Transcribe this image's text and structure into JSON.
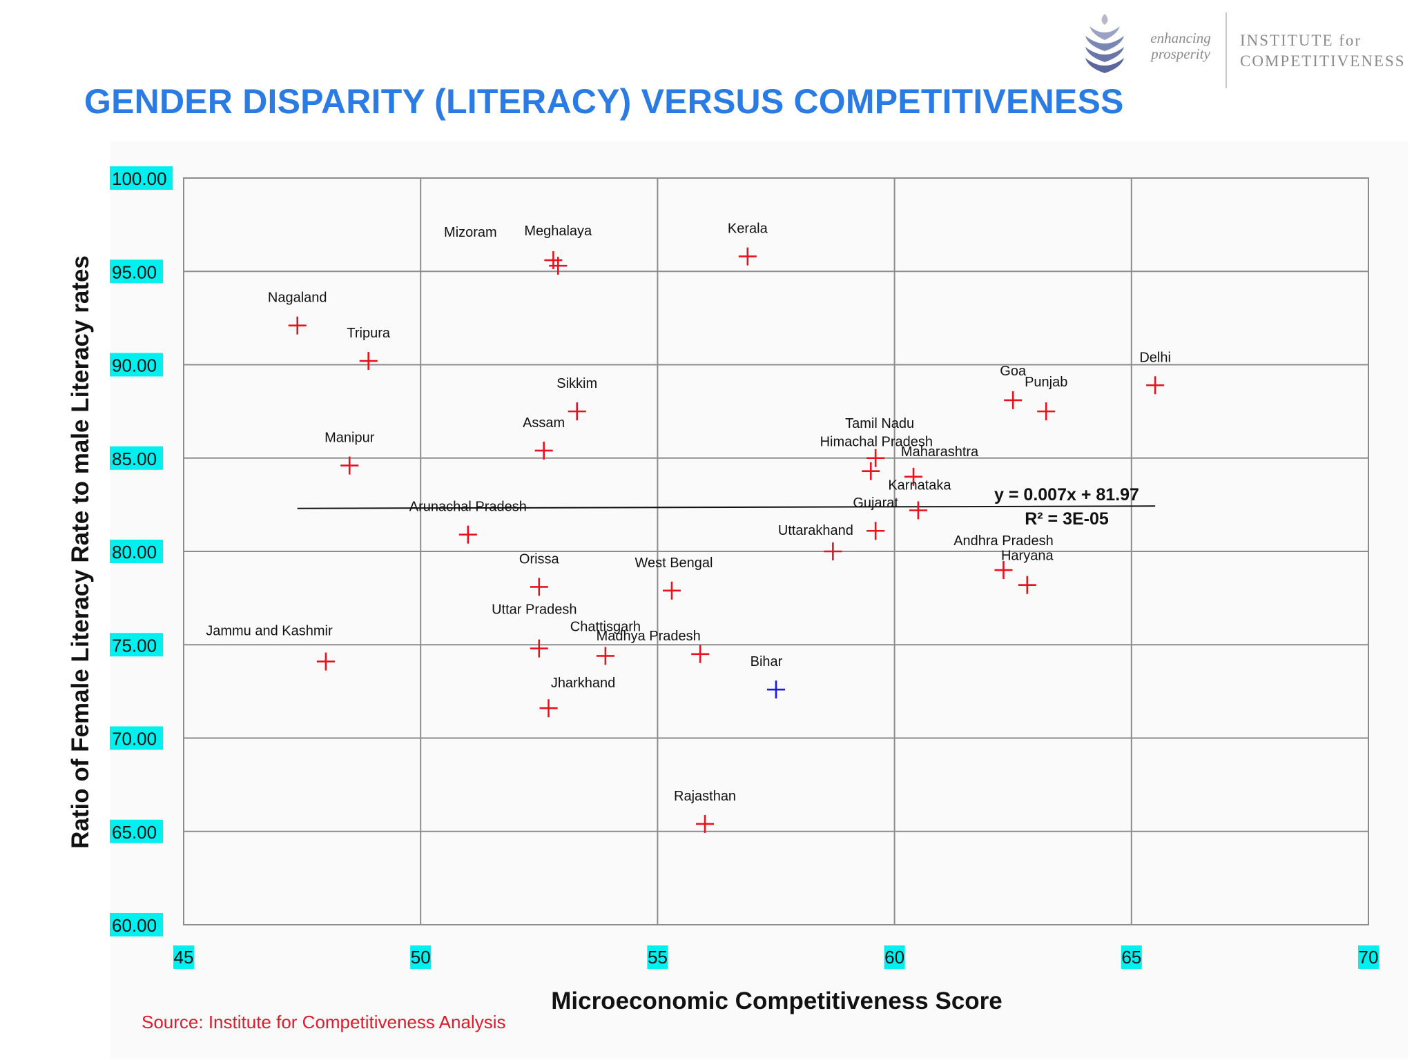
{
  "page": {
    "title": "GENDER DISPARITY (LITERACY) VERSUS COMPETITIVENESS",
    "source": "Source: Institute for Competitiveness Analysis"
  },
  "logo": {
    "tagline_line1": "enhancing",
    "tagline_line2": "prosperity",
    "name_line1": "INSTITUTE for",
    "name_line2": "COMPETITIVENESS",
    "icon": "stacked-leaf-emblem-icon"
  },
  "colors": {
    "title": "#2a7be4",
    "marker": "#e8121f",
    "highlight_marker": "#1a1ae6",
    "source_text": "#e0192b",
    "tick_highlight": "#00f0f0"
  },
  "chart_data": {
    "type": "scatter",
    "xlabel": "Microeconomic Competitiveness Score",
    "ylabel": "Ratio of Female Literacy Rate to male Literacy rates",
    "xlim": [
      45,
      70
    ],
    "ylim": [
      60,
      100
    ],
    "x_ticks": [
      "45",
      "50",
      "55",
      "60",
      "65",
      "70"
    ],
    "y_ticks": [
      "60.00",
      "65.00",
      "70.00",
      "75.00",
      "80.00",
      "85.00",
      "90.00",
      "95.00",
      "100.00"
    ],
    "grid": true,
    "trendline": {
      "type": "linear",
      "slope": 0.007,
      "intercept": 81.97,
      "x_range": [
        47.4,
        65.5
      ],
      "equation": "y = 0.007x + 81.97",
      "r_squared": "R² = 3E-05"
    },
    "points": [
      {
        "label": "Mizoram",
        "x": 52.8,
        "y": 95.6
      },
      {
        "label": "Meghalaya",
        "x": 52.9,
        "y": 95.3
      },
      {
        "label": "Kerala",
        "x": 56.9,
        "y": 95.8
      },
      {
        "label": "Nagaland",
        "x": 47.4,
        "y": 92.1
      },
      {
        "label": "Tripura",
        "x": 48.9,
        "y": 90.2
      },
      {
        "label": "Sikkim",
        "x": 53.3,
        "y": 87.5
      },
      {
        "label": "Assam",
        "x": 52.6,
        "y": 85.4
      },
      {
        "label": "Manipur",
        "x": 48.5,
        "y": 84.6
      },
      {
        "label": "Arunachal Pradesh",
        "x": 51.0,
        "y": 80.9
      },
      {
        "label": "Orissa",
        "x": 52.5,
        "y": 78.1
      },
      {
        "label": "West Bengal",
        "x": 55.3,
        "y": 77.9
      },
      {
        "label": "Uttar Pradesh",
        "x": 52.5,
        "y": 74.8
      },
      {
        "label": "Chattisgarh",
        "x": 53.9,
        "y": 74.4
      },
      {
        "label": "Madhya Pradesh",
        "x": 55.9,
        "y": 74.5
      },
      {
        "label": "Jammu and Kashmir",
        "x": 48.0,
        "y": 74.1
      },
      {
        "label": "Jharkhand",
        "x": 52.7,
        "y": 71.6
      },
      {
        "label": "Bihar",
        "x": 57.5,
        "y": 72.6,
        "highlight": true
      },
      {
        "label": "Rajasthan",
        "x": 56.0,
        "y": 65.4
      },
      {
        "label": "Tamil Nadu",
        "x": 59.6,
        "y": 85.0
      },
      {
        "label": "Himachal Pradesh",
        "x": 59.5,
        "y": 84.3
      },
      {
        "label": "Maharashtra",
        "x": 60.4,
        "y": 84.0
      },
      {
        "label": "Karnataka",
        "x": 60.5,
        "y": 82.2
      },
      {
        "label": "Gujarat",
        "x": 59.6,
        "y": 81.1
      },
      {
        "label": "Uttarakhand",
        "x": 58.7,
        "y": 80.0
      },
      {
        "label": "Goa",
        "x": 62.5,
        "y": 88.1
      },
      {
        "label": "Punjab",
        "x": 63.2,
        "y": 87.5
      },
      {
        "label": "Delhi",
        "x": 65.5,
        "y": 88.9
      },
      {
        "label": "Andhra Pradesh",
        "x": 62.3,
        "y": 79.0
      },
      {
        "label": "Haryana",
        "x": 62.8,
        "y": 78.2
      }
    ]
  }
}
